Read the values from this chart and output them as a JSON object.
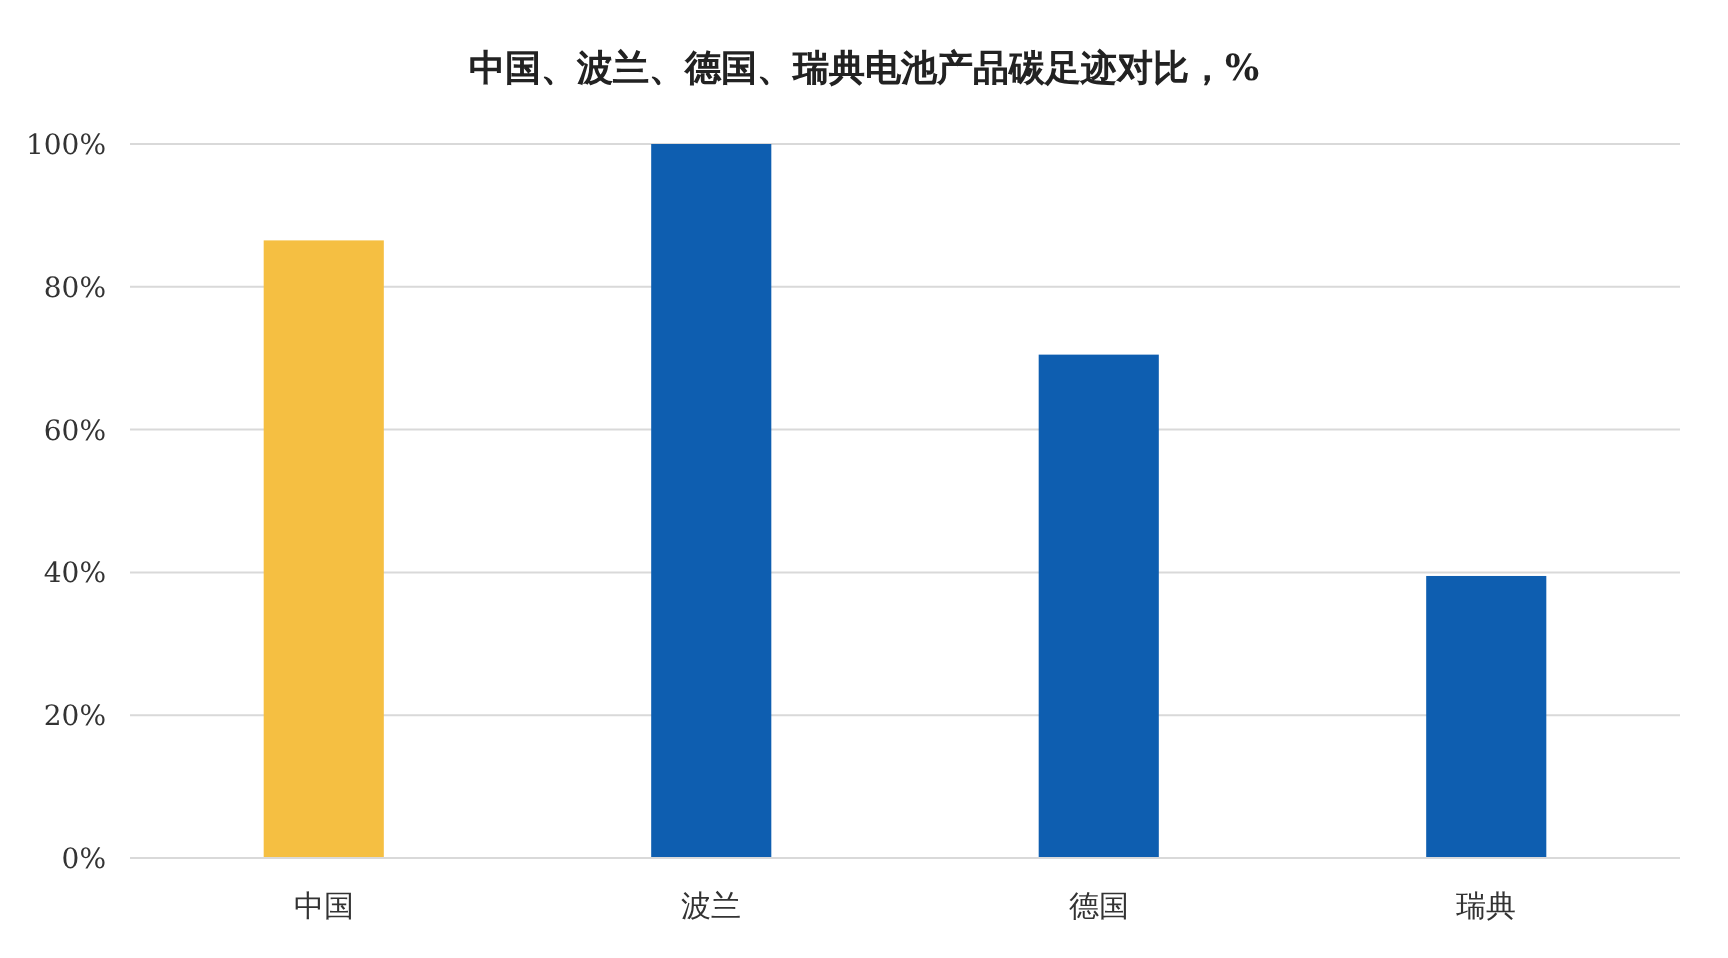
{
  "chart_data": {
    "type": "bar",
    "title": "中国、波兰、德国、瑞典电池产品碳足迹对比，%",
    "categories": [
      "中国",
      "波兰",
      "德国",
      "瑞典"
    ],
    "values": [
      86.5,
      100,
      70.5,
      39.5
    ],
    "colors": [
      "#f5bf42",
      "#0e5eb0",
      "#0e5eb0",
      "#0e5eb0"
    ],
    "ylim": [
      0,
      100
    ],
    "yticks": [
      {
        "value": 0,
        "label": "0%"
      },
      {
        "value": 20,
        "label": "20%"
      },
      {
        "value": 40,
        "label": "40%"
      },
      {
        "value": 60,
        "label": "60%"
      },
      {
        "value": 80,
        "label": "80%"
      },
      {
        "value": 100,
        "label": "100%"
      }
    ],
    "grid": "y"
  }
}
